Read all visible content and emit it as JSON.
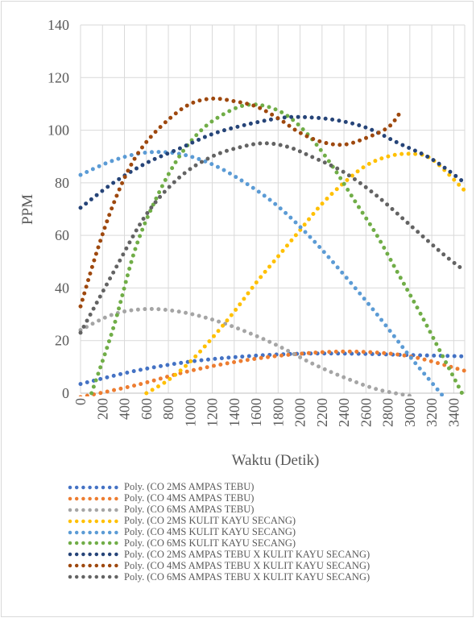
{
  "chart_data": {
    "type": "line",
    "title": "",
    "xlabel": "Waktu (Detik)",
    "ylabel": "PPM",
    "xlim": [
      0,
      3500
    ],
    "ylim": [
      0,
      140
    ],
    "xticks": [
      0,
      200,
      400,
      600,
      800,
      1000,
      1200,
      1400,
      1600,
      1800,
      2000,
      2200,
      2400,
      2600,
      2800,
      3000,
      3200,
      3400
    ],
    "yticks": [
      0,
      20,
      40,
      60,
      80,
      100,
      120,
      140
    ],
    "grid": true,
    "legend_position": "bottom",
    "line_style": "dotted",
    "series": [
      {
        "name": "Poly. (CO 2MS AMPAS TEBU)",
        "color": "#4472c4",
        "x": [
          0,
          500,
          1000,
          1500,
          2000,
          2500,
          3000,
          3500
        ],
        "y": [
          3.5,
          8.5,
          12,
          14,
          15,
          15,
          14.5,
          14
        ]
      },
      {
        "name": "Poly. (CO 4MS AMPAS TEBU)",
        "color": "#ed7d31",
        "x": [
          0,
          500,
          1000,
          1500,
          2000,
          2500,
          3000,
          3500
        ],
        "y": [
          -1.5,
          3,
          8.5,
          12.5,
          15,
          15.8,
          14,
          8.5
        ]
      },
      {
        "name": "Poly. (CO 6MS AMPAS TEBU)",
        "color": "#a5a5a5",
        "x": [
          0,
          300,
          600,
          900,
          1200,
          1500,
          1800,
          2100,
          2400,
          2700,
          3000
        ],
        "y": [
          24,
          30,
          32,
          31,
          28,
          23.5,
          18,
          11.5,
          6,
          1.5,
          -1
        ]
      },
      {
        "name": "Poly. (CO 2MS KULIT KAYU SECANG)",
        "color": "#ffc000",
        "x": [
          600,
          800,
          1000,
          1200,
          1400,
          1600,
          1800,
          2000,
          2200,
          2400,
          2600,
          2800,
          3000,
          3200,
          3500
        ],
        "y": [
          0,
          5,
          12,
          21,
          31,
          42,
          52,
          62,
          72,
          80,
          86.5,
          90,
          91,
          89,
          77
        ]
      },
      {
        "name": "Poly. (CO 4MS KULIT KAYU SECANG)",
        "color": "#5b9bd5",
        "x": [
          0,
          300,
          600,
          900,
          1200,
          1500,
          1800,
          2100,
          2400,
          2700,
          3000,
          3200,
          3300
        ],
        "y": [
          83,
          88.5,
          91.5,
          91,
          87,
          80,
          71,
          59,
          45,
          30,
          14,
          4,
          -1
        ]
      },
      {
        "name": "Poly. (CO 6MS KULIT KAYU SECANG)",
        "color": "#70ad47",
        "x": [
          100,
          300,
          500,
          700,
          900,
          1100,
          1300,
          1500,
          1700,
          1900,
          2100,
          2300,
          2500,
          2700,
          2900,
          3100,
          3300,
          3500
        ],
        "y": [
          0,
          25,
          55,
          75,
          90,
          100,
          106,
          109.5,
          109,
          105,
          97,
          86,
          73,
          60,
          45,
          30,
          14,
          -2
        ]
      },
      {
        "name": "Poly. (CO 2MS AMPAS TEBU X KULIT KAYU SECANG)",
        "color": "#264478",
        "x": [
          0,
          300,
          600,
          900,
          1200,
          1500,
          1800,
          2000,
          2300,
          2600,
          2900,
          3200,
          3500
        ],
        "y": [
          70.5,
          80,
          87.5,
          93,
          98.5,
          102,
          104.5,
          105,
          104,
          101,
          95,
          89,
          80
        ]
      },
      {
        "name": "Poly. (CO 4MS AMPAS TEBU X KULIT KAYU SECANG)",
        "color": "#9e480e",
        "x": [
          0,
          150,
          300,
          450,
          600,
          800,
          1000,
          1200,
          1400,
          1600,
          1800,
          2000,
          2200,
          2400,
          2600,
          2800,
          2900
        ],
        "y": [
          33,
          54,
          72,
          86,
          95.5,
          104,
          110,
          112,
          111,
          109,
          104.5,
          99,
          95.5,
          94.5,
          97,
          101,
          106
        ]
      },
      {
        "name": "Poly. (CO 6MS AMPAS TEBU X KULIT KAYU SECANG)",
        "color": "#636363",
        "x": [
          0,
          300,
          600,
          900,
          1200,
          1500,
          1700,
          1900,
          2100,
          2400,
          2700,
          3000,
          3300,
          3500
        ],
        "y": [
          23,
          46,
          68,
          82,
          90,
          94,
          95,
          93.5,
          90,
          84,
          75,
          64,
          53,
          46.5
        ]
      }
    ]
  }
}
